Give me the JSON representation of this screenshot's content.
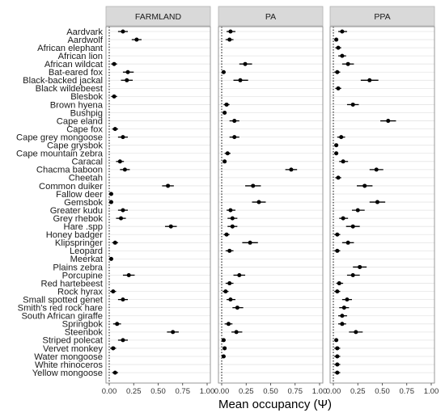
{
  "chart_data": {
    "type": "dot-whisker",
    "xlabel": "Mean occupancy (Ψ)",
    "xlim": [
      0,
      1
    ],
    "xticks": [
      "0.00",
      "0.25",
      "0.50",
      "0.75",
      "1.00"
    ],
    "reference_line_x": 0,
    "grid": true,
    "colors": {
      "point": "#000000",
      "errorbar": "#000000",
      "strip_fill": "#d9d9d9",
      "strip_border": "#b3b3b3",
      "gridline": "#e5e5e5",
      "panel_border": "#8c8c8c",
      "reference_line": "#000000"
    },
    "species": [
      "Aardvark",
      "Aardwolf",
      "African elephant",
      "African lion",
      "African wildcat",
      "Bat-eared fox",
      "Black-backed jackal",
      "Black wildebeest",
      "Blesbok",
      "Brown hyena",
      "Bushpig",
      "Cape eland",
      "Cape fox",
      "Cape grey mongoose",
      "Cape grysbok",
      "Cape mountain zebra",
      "Caracal",
      "Chacma baboon",
      "Cheetah",
      "Common duiker",
      "Fallow deer",
      "Gemsbok",
      "Greater kudu",
      "Grey rhebok",
      "Hare .spp",
      "Honey badger",
      "Klipspringer",
      "Leopard",
      "Meerkat",
      "Plains zebra",
      "Porcupine",
      "Red hartebeest",
      "Rock hyrax",
      "Small spotted genet",
      "Smith's red rock hare",
      "South African giraffe",
      "Springbok",
      "Steenbok",
      "Striped polecat",
      "Vervet monkey",
      "Water mongoose",
      "White rhinoceros",
      "Yellow mongoose"
    ],
    "panels": [
      {
        "name": "FARMLAND",
        "points": [
          {
            "species": "Aardvark",
            "mean": 0.14,
            "lo": 0.09,
            "hi": 0.19
          },
          {
            "species": "Aardwolf",
            "mean": 0.28,
            "lo": 0.23,
            "hi": 0.33
          },
          {
            "species": "African wildcat",
            "mean": 0.05,
            "lo": 0.02,
            "hi": 0.08
          },
          {
            "species": "Bat-eared fox",
            "mean": 0.19,
            "lo": 0.14,
            "hi": 0.25
          },
          {
            "species": "Black-backed jackal",
            "mean": 0.18,
            "lo": 0.12,
            "hi": 0.24
          },
          {
            "species": "Blesbok",
            "mean": 0.05,
            "lo": 0.02,
            "hi": 0.08
          },
          {
            "species": "Cape fox",
            "mean": 0.06,
            "lo": 0.03,
            "hi": 0.09
          },
          {
            "species": "Cape grey mongoose",
            "mean": 0.14,
            "lo": 0.09,
            "hi": 0.19
          },
          {
            "species": "Caracal",
            "mean": 0.11,
            "lo": 0.07,
            "hi": 0.15
          },
          {
            "species": "Chacma baboon",
            "mean": 0.16,
            "lo": 0.11,
            "hi": 0.21
          },
          {
            "species": "Common duiker",
            "mean": 0.6,
            "lo": 0.54,
            "hi": 0.66
          },
          {
            "species": "Fallow deer",
            "mean": 0.02,
            "lo": 0.0,
            "hi": 0.04
          },
          {
            "species": "Gemsbok",
            "mean": 0.02,
            "lo": 0.0,
            "hi": 0.04
          },
          {
            "species": "Greater kudu",
            "mean": 0.14,
            "lo": 0.09,
            "hi": 0.19
          },
          {
            "species": "Grey rhebok",
            "mean": 0.12,
            "lo": 0.07,
            "hi": 0.17
          },
          {
            "species": "Hare .spp",
            "mean": 0.63,
            "lo": 0.57,
            "hi": 0.69
          },
          {
            "species": "Klipspringer",
            "mean": 0.06,
            "lo": 0.03,
            "hi": 0.09
          },
          {
            "species": "Meerkat",
            "mean": 0.02,
            "lo": 0.0,
            "hi": 0.04
          },
          {
            "species": "Porcupine",
            "mean": 0.2,
            "lo": 0.14,
            "hi": 0.26
          },
          {
            "species": "Rock hyrax",
            "mean": 0.04,
            "lo": 0.01,
            "hi": 0.07
          },
          {
            "species": "Small spotted genet",
            "mean": 0.14,
            "lo": 0.09,
            "hi": 0.19
          },
          {
            "species": "Springbok",
            "mean": 0.08,
            "lo": 0.04,
            "hi": 0.12
          },
          {
            "species": "Steenbok",
            "mean": 0.65,
            "lo": 0.59,
            "hi": 0.71
          },
          {
            "species": "Striped polecat",
            "mean": 0.14,
            "lo": 0.09,
            "hi": 0.19
          },
          {
            "species": "Vervet monkey",
            "mean": 0.04,
            "lo": 0.01,
            "hi": 0.07
          },
          {
            "species": "Yellow mongoose",
            "mean": 0.06,
            "lo": 0.03,
            "hi": 0.09
          }
        ]
      },
      {
        "name": "PA",
        "points": [
          {
            "species": "Aardvark",
            "mean": 0.09,
            "lo": 0.05,
            "hi": 0.14
          },
          {
            "species": "Aardwolf",
            "mean": 0.08,
            "lo": 0.04,
            "hi": 0.12
          },
          {
            "species": "African wildcat",
            "mean": 0.24,
            "lo": 0.18,
            "hi": 0.31
          },
          {
            "species": "Bat-eared fox",
            "mean": 0.02,
            "lo": 0.0,
            "hi": 0.04
          },
          {
            "species": "Black-backed jackal",
            "mean": 0.19,
            "lo": 0.12,
            "hi": 0.27
          },
          {
            "species": "Brown hyena",
            "mean": 0.05,
            "lo": 0.02,
            "hi": 0.08
          },
          {
            "species": "Bushpig",
            "mean": 0.03,
            "lo": 0.01,
            "hi": 0.05
          },
          {
            "species": "Cape eland",
            "mean": 0.13,
            "lo": 0.08,
            "hi": 0.18
          },
          {
            "species": "Cape grey mongoose",
            "mean": 0.13,
            "lo": 0.08,
            "hi": 0.18
          },
          {
            "species": "Cape mountain zebra",
            "mean": 0.06,
            "lo": 0.03,
            "hi": 0.09
          },
          {
            "species": "Caracal",
            "mean": 0.03,
            "lo": 0.01,
            "hi": 0.05
          },
          {
            "species": "Chacma baboon",
            "mean": 0.71,
            "lo": 0.65,
            "hi": 0.77
          },
          {
            "species": "Common duiker",
            "mean": 0.32,
            "lo": 0.24,
            "hi": 0.4
          },
          {
            "species": "Gemsbok",
            "mean": 0.38,
            "lo": 0.31,
            "hi": 0.45
          },
          {
            "species": "Greater kudu",
            "mean": 0.09,
            "lo": 0.05,
            "hi": 0.14
          },
          {
            "species": "Grey rhebok",
            "mean": 0.11,
            "lo": 0.06,
            "hi": 0.16
          },
          {
            "species": "Hare .spp",
            "mean": 0.11,
            "lo": 0.06,
            "hi": 0.16
          },
          {
            "species": "Honey badger",
            "mean": 0.05,
            "lo": 0.02,
            "hi": 0.08
          },
          {
            "species": "Klipspringer",
            "mean": 0.29,
            "lo": 0.21,
            "hi": 0.37
          },
          {
            "species": "Leopard",
            "mean": 0.08,
            "lo": 0.04,
            "hi": 0.12
          },
          {
            "species": "Porcupine",
            "mean": 0.18,
            "lo": 0.12,
            "hi": 0.24
          },
          {
            "species": "Red hartebeest",
            "mean": 0.08,
            "lo": 0.04,
            "hi": 0.12
          },
          {
            "species": "Rock hyrax",
            "mean": 0.04,
            "lo": 0.01,
            "hi": 0.07
          },
          {
            "species": "Small spotted genet",
            "mean": 0.09,
            "lo": 0.05,
            "hi": 0.14
          },
          {
            "species": "Smith's red rock hare",
            "mean": 0.16,
            "lo": 0.11,
            "hi": 0.22
          },
          {
            "species": "Springbok",
            "mean": 0.07,
            "lo": 0.03,
            "hi": 0.11
          },
          {
            "species": "Steenbok",
            "mean": 0.15,
            "lo": 0.1,
            "hi": 0.21
          },
          {
            "species": "Striped polecat",
            "mean": 0.02,
            "lo": 0.0,
            "hi": 0.04
          },
          {
            "species": "Vervet monkey",
            "mean": 0.03,
            "lo": 0.01,
            "hi": 0.05
          },
          {
            "species": "Water mongoose",
            "mean": 0.02,
            "lo": 0.0,
            "hi": 0.04
          }
        ]
      },
      {
        "name": "PPA",
        "points": [
          {
            "species": "Aardvark",
            "mean": 0.09,
            "lo": 0.05,
            "hi": 0.14
          },
          {
            "species": "Aardwolf",
            "mean": 0.03,
            "lo": 0.01,
            "hi": 0.05
          },
          {
            "species": "African elephant",
            "mean": 0.05,
            "lo": 0.02,
            "hi": 0.08
          },
          {
            "species": "African lion",
            "mean": 0.09,
            "lo": 0.05,
            "hi": 0.13
          },
          {
            "species": "African wildcat",
            "mean": 0.15,
            "lo": 0.09,
            "hi": 0.21
          },
          {
            "species": "Bat-eared fox",
            "mean": 0.04,
            "lo": 0.01,
            "hi": 0.07
          },
          {
            "species": "Black-backed jackal",
            "mean": 0.37,
            "lo": 0.28,
            "hi": 0.46
          },
          {
            "species": "Black wildebeest",
            "mean": 0.05,
            "lo": 0.02,
            "hi": 0.08
          },
          {
            "species": "Brown hyena",
            "mean": 0.2,
            "lo": 0.14,
            "hi": 0.26
          },
          {
            "species": "Cape eland",
            "mean": 0.56,
            "lo": 0.48,
            "hi": 0.64
          },
          {
            "species": "Cape grey mongoose",
            "mean": 0.08,
            "lo": 0.04,
            "hi": 0.12
          },
          {
            "species": "Cape grysbok",
            "mean": 0.03,
            "lo": 0.01,
            "hi": 0.05
          },
          {
            "species": "Cape mountain zebra",
            "mean": 0.03,
            "lo": 0.01,
            "hi": 0.05
          },
          {
            "species": "Caracal",
            "mean": 0.1,
            "lo": 0.06,
            "hi": 0.15
          },
          {
            "species": "Chacma baboon",
            "mean": 0.44,
            "lo": 0.37,
            "hi": 0.51
          },
          {
            "species": "Cheetah",
            "mean": 0.05,
            "lo": 0.02,
            "hi": 0.08
          },
          {
            "species": "Common duiker",
            "mean": 0.32,
            "lo": 0.24,
            "hi": 0.4
          },
          {
            "species": "Gemsbok",
            "mean": 0.45,
            "lo": 0.37,
            "hi": 0.53
          },
          {
            "species": "Greater kudu",
            "mean": 0.25,
            "lo": 0.19,
            "hi": 0.32
          },
          {
            "species": "Grey rhebok",
            "mean": 0.1,
            "lo": 0.06,
            "hi": 0.15
          },
          {
            "species": "Hare .spp",
            "mean": 0.2,
            "lo": 0.13,
            "hi": 0.27
          },
          {
            "species": "Honey badger",
            "mean": 0.04,
            "lo": 0.01,
            "hi": 0.07
          },
          {
            "species": "Klipspringer",
            "mean": 0.15,
            "lo": 0.09,
            "hi": 0.21
          },
          {
            "species": "Leopard",
            "mean": 0.04,
            "lo": 0.01,
            "hi": 0.07
          },
          {
            "species": "Plains zebra",
            "mean": 0.27,
            "lo": 0.2,
            "hi": 0.34
          },
          {
            "species": "Porcupine",
            "mean": 0.2,
            "lo": 0.14,
            "hi": 0.27
          },
          {
            "species": "Red hartebeest",
            "mean": 0.06,
            "lo": 0.03,
            "hi": 0.1
          },
          {
            "species": "Rock hyrax",
            "mean": 0.04,
            "lo": 0.01,
            "hi": 0.07
          },
          {
            "species": "Small spotted genet",
            "mean": 0.14,
            "lo": 0.09,
            "hi": 0.19
          },
          {
            "species": "Smith's red rock hare",
            "mean": 0.11,
            "lo": 0.06,
            "hi": 0.16
          },
          {
            "species": "South African giraffe",
            "mean": 0.09,
            "lo": 0.05,
            "hi": 0.14
          },
          {
            "species": "Springbok",
            "mean": 0.09,
            "lo": 0.05,
            "hi": 0.13
          },
          {
            "species": "Steenbok",
            "mean": 0.23,
            "lo": 0.16,
            "hi": 0.3
          },
          {
            "species": "Striped polecat",
            "mean": 0.03,
            "lo": 0.01,
            "hi": 0.05
          },
          {
            "species": "Vervet monkey",
            "mean": 0.04,
            "lo": 0.01,
            "hi": 0.07
          },
          {
            "species": "Water mongoose",
            "mean": 0.04,
            "lo": 0.01,
            "hi": 0.07
          },
          {
            "species": "White rhinoceros",
            "mean": 0.04,
            "lo": 0.01,
            "hi": 0.07
          },
          {
            "species": "Yellow mongoose",
            "mean": 0.04,
            "lo": 0.01,
            "hi": 0.07
          }
        ]
      }
    ]
  }
}
